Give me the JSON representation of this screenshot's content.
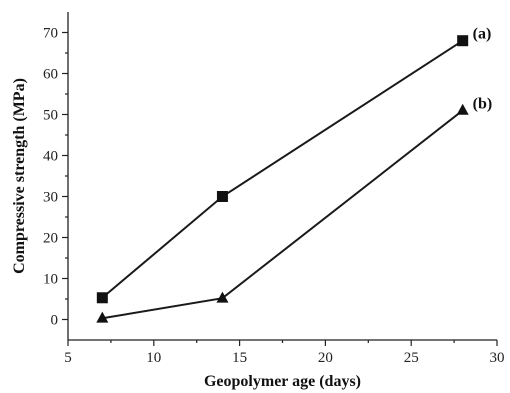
{
  "chart_data": {
    "type": "line",
    "xlabel": "Geopolymer age (days)",
    "ylabel": "Compressive strength (MPa)",
    "xlim": [
      5,
      30
    ],
    "ylim": [
      -5,
      75
    ],
    "xticks": [
      5,
      10,
      15,
      20,
      25,
      30
    ],
    "yticks": [
      0,
      10,
      20,
      30,
      40,
      50,
      60,
      70
    ],
    "grid": false,
    "series": [
      {
        "name": "(a)",
        "marker": "square",
        "x": [
          7,
          14,
          28
        ],
        "y": [
          5.3,
          30,
          68
        ]
      },
      {
        "name": "(b)",
        "marker": "triangle",
        "x": [
          7,
          14,
          28
        ],
        "y": [
          0.3,
          5.2,
          51
        ]
      }
    ]
  }
}
